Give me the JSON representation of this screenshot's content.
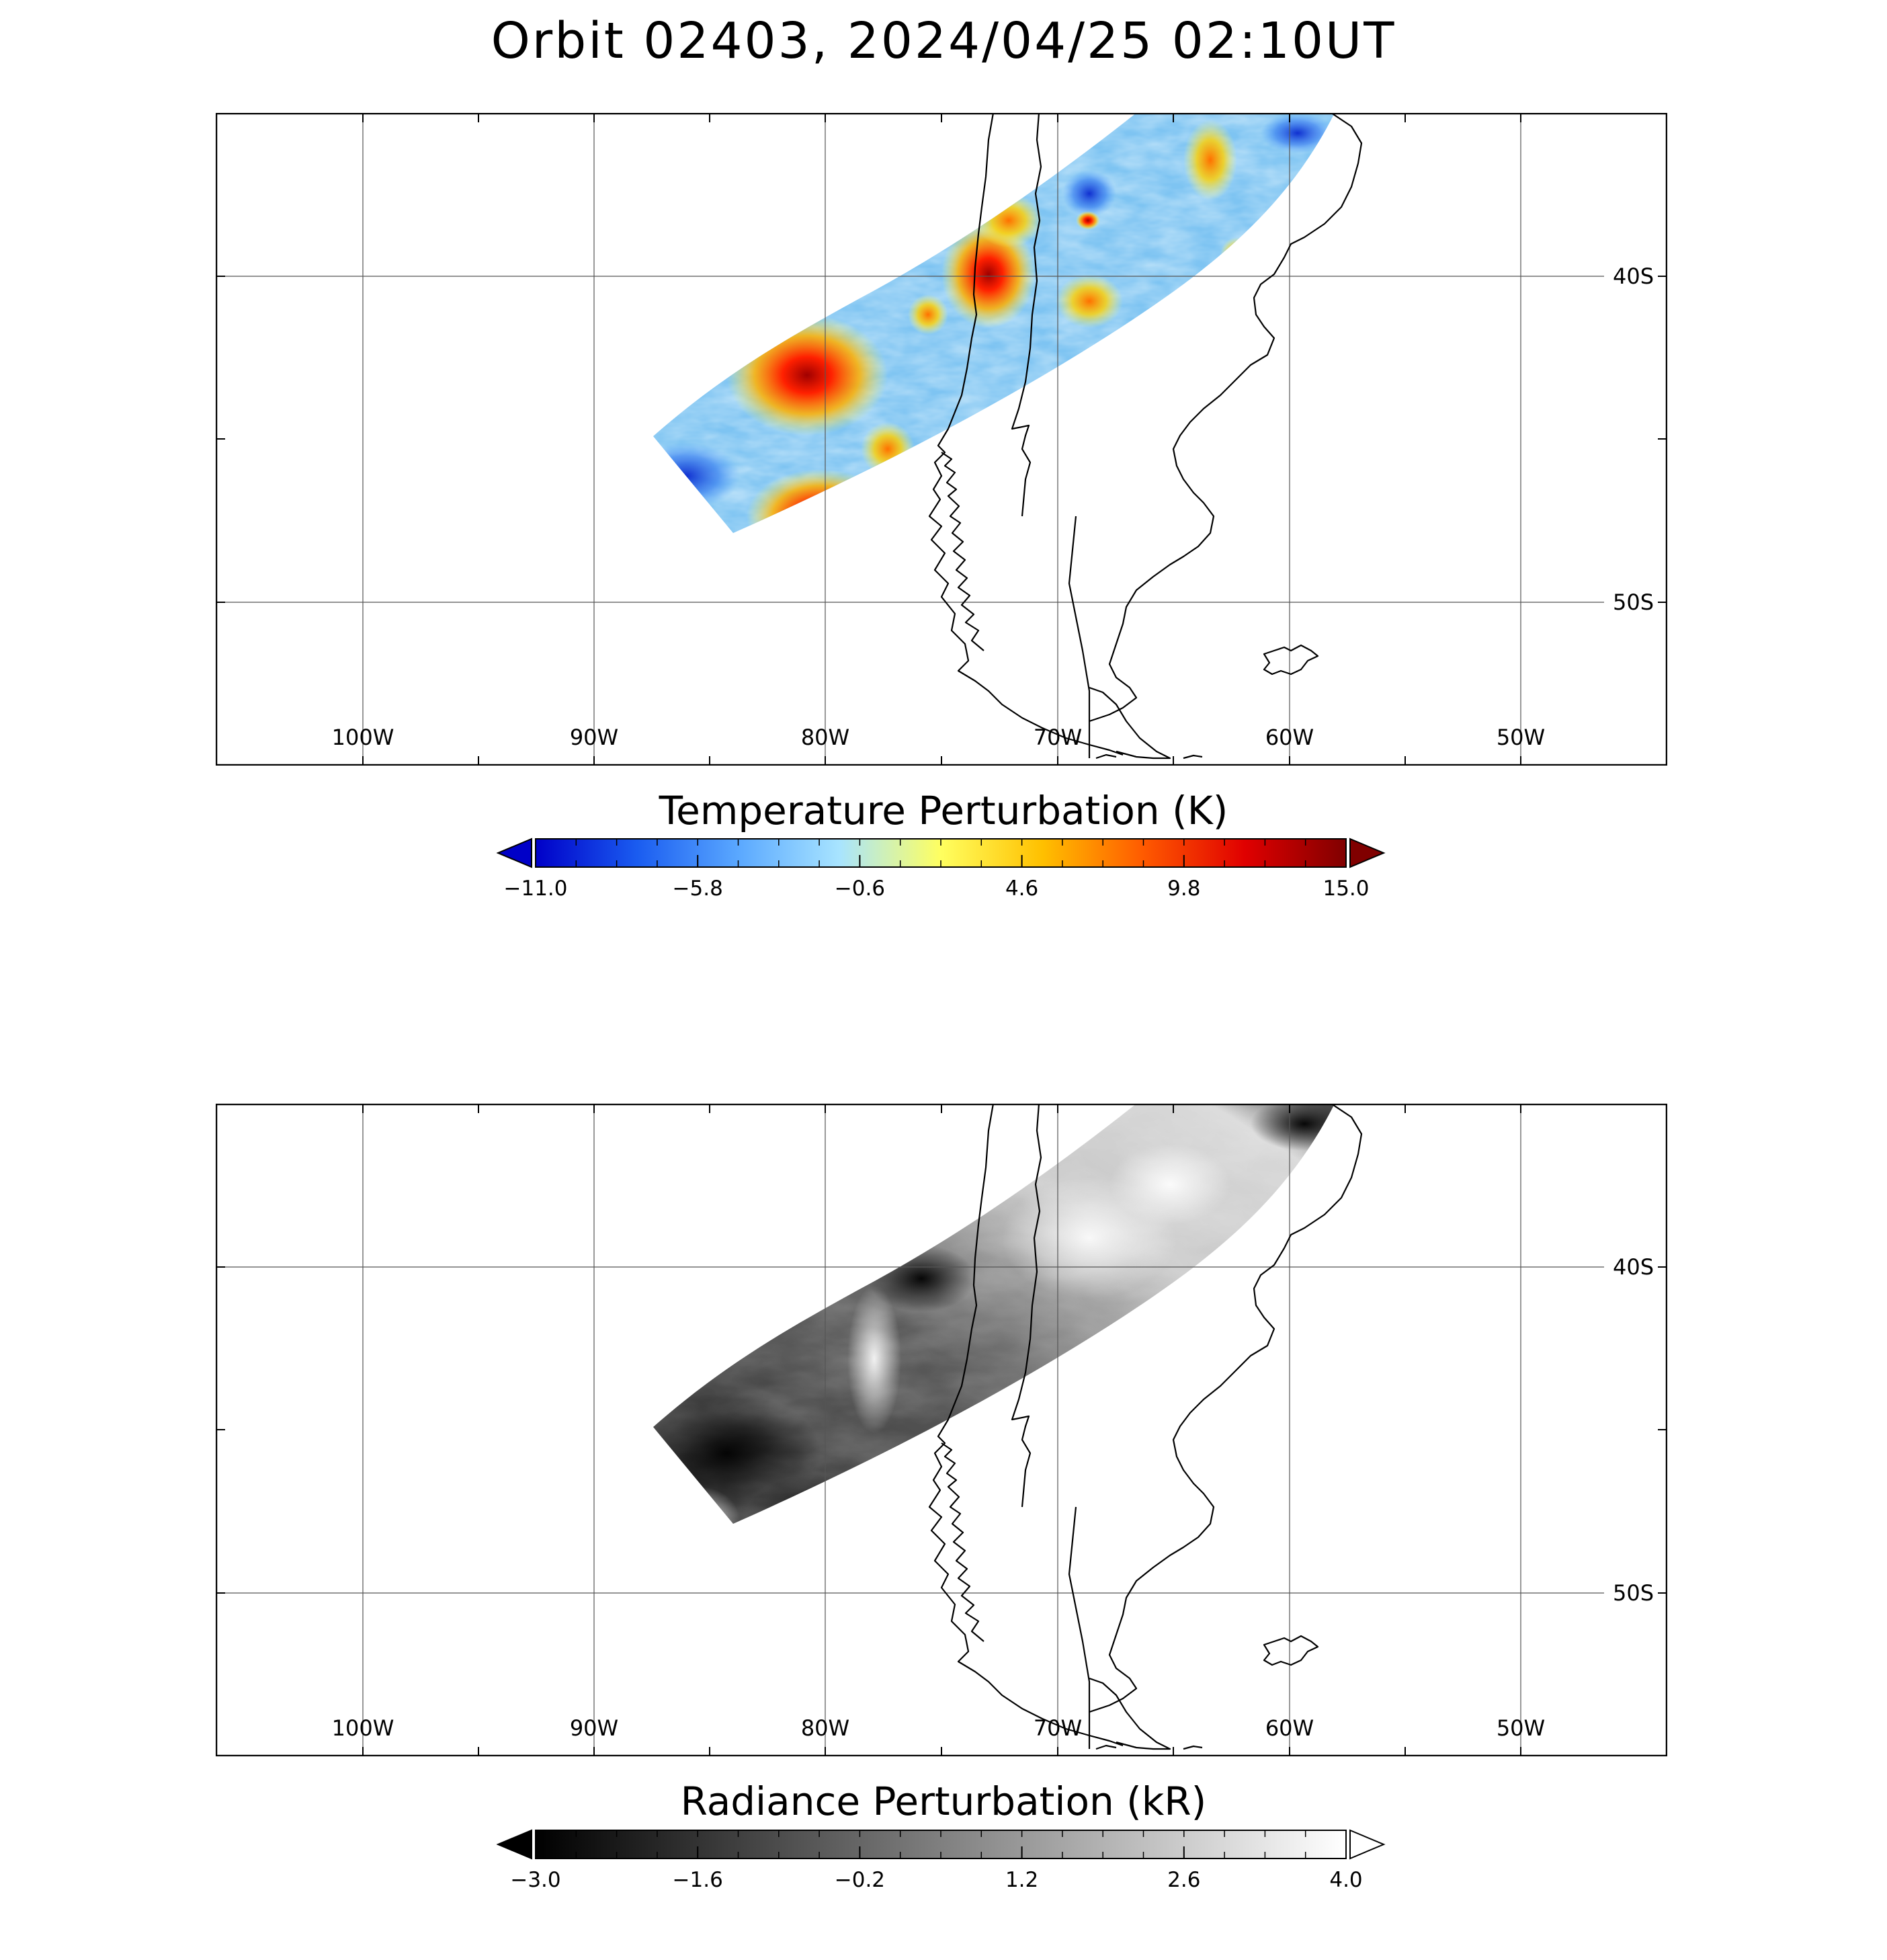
{
  "title": "Orbit 02403, 2024/04/25 02:10UT",
  "map": {
    "lon_labels": [
      "100W",
      "90W",
      "80W",
      "70W",
      "60W",
      "50W"
    ],
    "lat_labels": [
      "40S",
      "50S"
    ],
    "lon_range": [
      -106.5,
      -43.5
    ],
    "lat_range": [
      -35,
      -55
    ]
  },
  "panels": [
    {
      "name": "temperature",
      "colorbar": {
        "title": "Temperature Perturbation (K)",
        "ticks": [
          "−11.0",
          "−5.8",
          "−0.6",
          "4.6",
          "9.8",
          "15.0"
        ],
        "range": [
          -11.0,
          15.0
        ],
        "colors": [
          "#0000c8",
          "#1a5cf0",
          "#5aa8ff",
          "#a8e4ff",
          "#ffff60",
          "#ffc000",
          "#ff5a00",
          "#e00000",
          "#800000"
        ]
      }
    },
    {
      "name": "radiance",
      "colorbar": {
        "title": "Radiance Perturbation (kR)",
        "ticks": [
          "−3.0",
          "−1.6",
          "−0.2",
          "1.2",
          "2.6",
          "4.0"
        ],
        "range": [
          -3.0,
          4.0
        ],
        "colors": [
          "#000000",
          "#ffffff"
        ]
      }
    }
  ]
}
